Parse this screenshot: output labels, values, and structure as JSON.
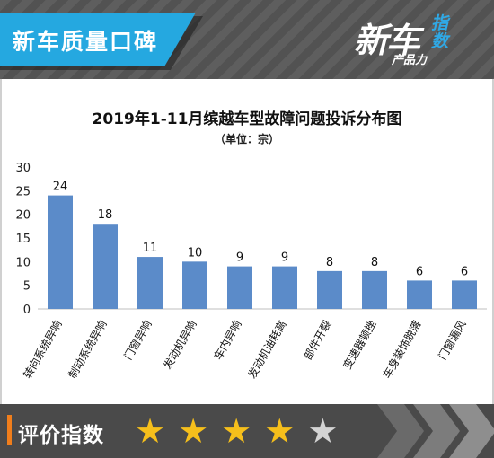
{
  "header": {
    "tag": "新车质量口碑",
    "brand_main": "新车",
    "brand_accent": "指\n数",
    "brand_sub": "产品力"
  },
  "chart_data": {
    "type": "bar",
    "title": "2019年1-11月缤越车型故障问题投诉分布图",
    "unit": "（单位：宗）",
    "categories": [
      "转向系统异响",
      "制动系统异响",
      "门窗异响",
      "发动机异响",
      "车内异响",
      "发动机油耗高",
      "部件开裂",
      "变速器顿挫",
      "车身装饰脱落",
      "门窗漏风"
    ],
    "values": [
      24,
      18,
      11,
      10,
      9,
      9,
      8,
      8,
      6,
      6
    ],
    "ylim": [
      0,
      30
    ],
    "yticks": [
      0,
      5,
      10,
      15,
      20,
      25,
      30
    ],
    "bar_color": "#5b8bc9",
    "grid": false,
    "legend": "none"
  },
  "footer": {
    "label": "评价指数",
    "rating": 4,
    "max_rating": 5
  },
  "colors": {
    "accent_blue": "#25a8e0",
    "accent_orange": "#f07e1c",
    "star_on": "#f6bf1b",
    "star_off": "#d4d4d4"
  }
}
